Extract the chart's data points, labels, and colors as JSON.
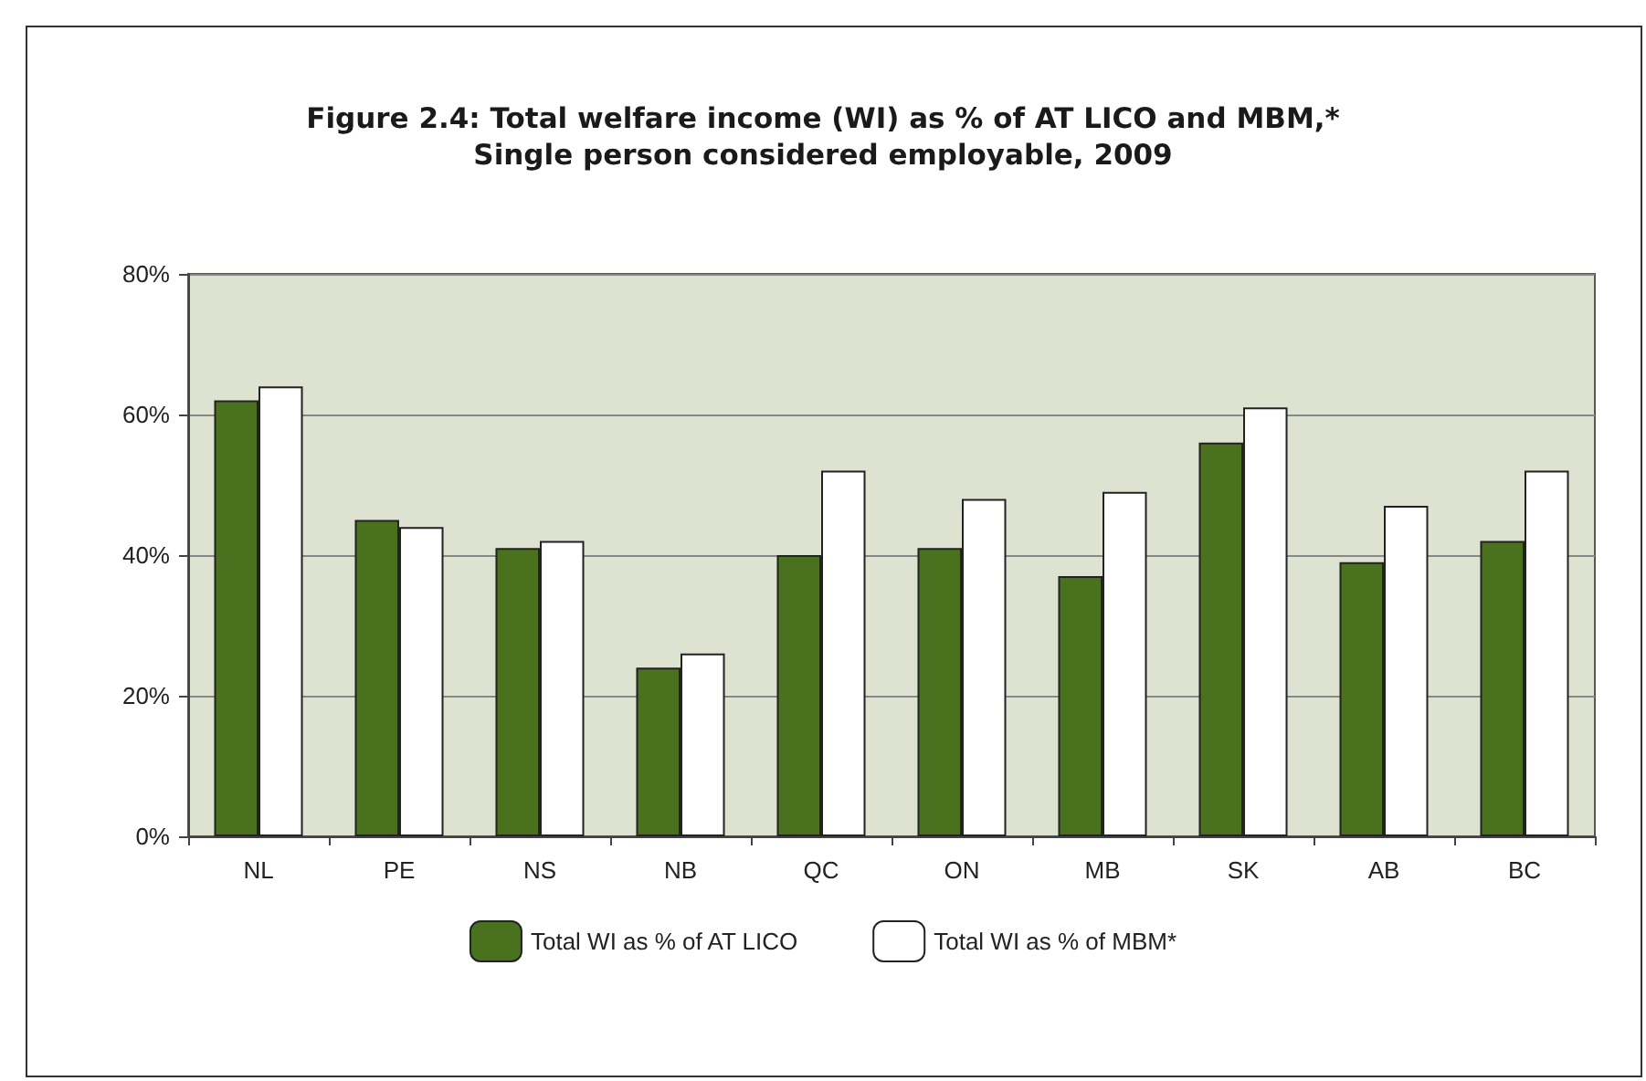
{
  "chart_data": {
    "type": "bar",
    "title": "Figure 2.4: Total welfare income (WI) as % of AT LICO and MBM,*\nSingle person considered employable, 2009",
    "categories": [
      "NL",
      "PE",
      "NS",
      "NB",
      "QC",
      "ON",
      "MB",
      "SK",
      "AB",
      "BC"
    ],
    "series": [
      {
        "name": "Total WI as % of AT LICO",
        "color": "#4a721e",
        "values": [
          62,
          45,
          41,
          24,
          40,
          41,
          37,
          56,
          39,
          42
        ]
      },
      {
        "name": "Total WI as % of MBM*",
        "color": "#ffffff",
        "values": [
          64,
          44,
          42,
          26,
          52,
          48,
          49,
          61,
          47,
          52
        ]
      }
    ],
    "ylim": [
      0,
      80
    ],
    "yticks": [
      {
        "value": 0,
        "label": "0%"
      },
      {
        "value": 20,
        "label": "20%"
      },
      {
        "value": 40,
        "label": "40%"
      },
      {
        "value": 60,
        "label": "60%"
      },
      {
        "value": 80,
        "label": "80%"
      }
    ],
    "grid": "y",
    "legend": "bottom"
  }
}
